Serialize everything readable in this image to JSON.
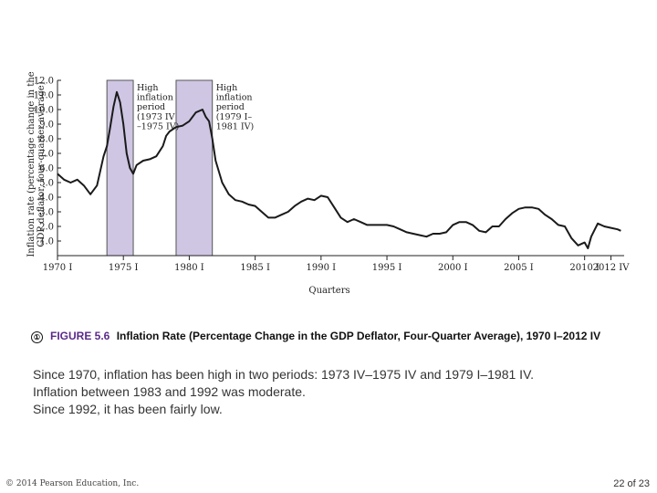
{
  "chart_data": {
    "type": "line",
    "title": "Inflation Rate (Percentage Change in the GDP Deflator, Four-Quarter Average), 1970 I–2012 IV",
    "xlabel": "Quarters",
    "ylabel_line1": "Inflation rate (percentage change in the",
    "ylabel_line2": "GDP deflator, four-quarter average)",
    "xlim": [
      1970.0,
      2013.0
    ],
    "ylim": [
      0.0,
      12.0
    ],
    "y_ticks": [
      0.0,
      1.0,
      2.0,
      3.0,
      4.0,
      5.0,
      6.0,
      7.0,
      8.0,
      9.0,
      10.0,
      11.0,
      12.0
    ],
    "y_tick_labels": [
      "",
      "1.0",
      "2.0",
      "3.0",
      "4.0",
      "5.0",
      "6.0",
      "7.0",
      "8.0",
      "9.0",
      "10.0",
      "11.0",
      "12.0"
    ],
    "x_ticks": [
      1970,
      1975,
      1980,
      1985,
      1990,
      1995,
      2000,
      2005,
      2010,
      2012
    ],
    "x_tick_labels": [
      "1970 I",
      "1975 I",
      "1980 I",
      "1985 I",
      "1990 I",
      "1995 I",
      "2000 I",
      "2005 I",
      "2010 I",
      "2012 IV"
    ],
    "shaded_periods": [
      {
        "start": 1973.75,
        "end": 1975.75,
        "label_lines": [
          "High",
          "inflation",
          "period",
          "(1973 IV",
          "–1975 IV)"
        ]
      },
      {
        "start": 1979.0,
        "end": 1981.75,
        "label_lines": [
          "High",
          "inflation",
          "period",
          "(1979 I–",
          "1981 IV)"
        ]
      }
    ],
    "series": [
      {
        "name": "Inflation rate",
        "x": [
          1970.0,
          1970.5,
          1971.0,
          1971.5,
          1972.0,
          1972.5,
          1973.0,
          1973.25,
          1973.5,
          1973.75,
          1974.0,
          1974.25,
          1974.5,
          1974.75,
          1975.0,
          1975.25,
          1975.5,
          1975.75,
          1976.0,
          1976.5,
          1977.0,
          1977.5,
          1978.0,
          1978.25,
          1978.5,
          1979.0,
          1979.5,
          1980.0,
          1980.5,
          1981.0,
          1981.25,
          1981.5,
          1981.75,
          1982.0,
          1982.5,
          1983.0,
          1983.5,
          1984.0,
          1984.5,
          1985.0,
          1985.5,
          1986.0,
          1986.5,
          1987.0,
          1987.5,
          1988.0,
          1988.5,
          1989.0,
          1989.5,
          1990.0,
          1990.5,
          1991.0,
          1991.5,
          1992.0,
          1992.5,
          1993.0,
          1993.5,
          1994.0,
          1994.5,
          1995.0,
          1995.5,
          1996.0,
          1996.5,
          1997.0,
          1997.5,
          1998.0,
          1998.5,
          1999.0,
          1999.5,
          2000.0,
          2000.5,
          2001.0,
          2001.5,
          2002.0,
          2002.5,
          2003.0,
          2003.5,
          2004.0,
          2004.5,
          2005.0,
          2005.5,
          2006.0,
          2006.5,
          2007.0,
          2007.5,
          2008.0,
          2008.5,
          2009.0,
          2009.5,
          2010.0,
          2010.25,
          2010.5,
          2011.0,
          2011.5,
          2012.0,
          2012.5,
          2012.75
        ],
        "values": [
          5.6,
          5.2,
          5.0,
          5.2,
          4.8,
          4.2,
          4.8,
          5.8,
          6.8,
          7.5,
          8.8,
          10.2,
          11.2,
          10.5,
          9.0,
          7.0,
          6.0,
          5.6,
          6.2,
          6.5,
          6.6,
          6.8,
          7.5,
          8.2,
          8.5,
          8.8,
          8.9,
          9.2,
          9.8,
          10.0,
          9.5,
          9.2,
          8.0,
          6.5,
          5.0,
          4.2,
          3.8,
          3.7,
          3.5,
          3.4,
          3.0,
          2.6,
          2.6,
          2.8,
          3.0,
          3.4,
          3.7,
          3.9,
          3.8,
          4.1,
          4.0,
          3.3,
          2.6,
          2.3,
          2.5,
          2.3,
          2.1,
          2.1,
          2.1,
          2.1,
          2.0,
          1.8,
          1.6,
          1.5,
          1.4,
          1.3,
          1.5,
          1.5,
          1.6,
          2.1,
          2.3,
          2.3,
          2.1,
          1.7,
          1.6,
          2.0,
          2.0,
          2.5,
          2.9,
          3.2,
          3.3,
          3.3,
          3.2,
          2.8,
          2.5,
          2.1,
          2.0,
          1.2,
          0.7,
          0.9,
          0.5,
          1.3,
          2.2,
          2.0,
          1.9,
          1.8,
          1.7
        ],
        "color": "#1a1a1a"
      }
    ],
    "shade_color": "#cfc6e3",
    "grid": false
  },
  "caption": {
    "icon_glyph": "①",
    "figure_label": "FIGURE 5.6",
    "title": "Inflation Rate (Percentage Change in the GDP Deflator, Four-Quarter Average), 1970 I–2012 IV"
  },
  "body_lines": [
    "Since 1970, inflation has been high in two periods: 1973 IV–1975 IV and 1979 I–1981 IV.",
    "Inflation between 1983 and 1992 was moderate.",
    "Since 1992, it has been fairly low."
  ],
  "footer": {
    "copyright": "© 2014 Pearson Education, Inc.",
    "page": "22 of 23"
  },
  "colors": {
    "accent": "#5a2a8a"
  }
}
